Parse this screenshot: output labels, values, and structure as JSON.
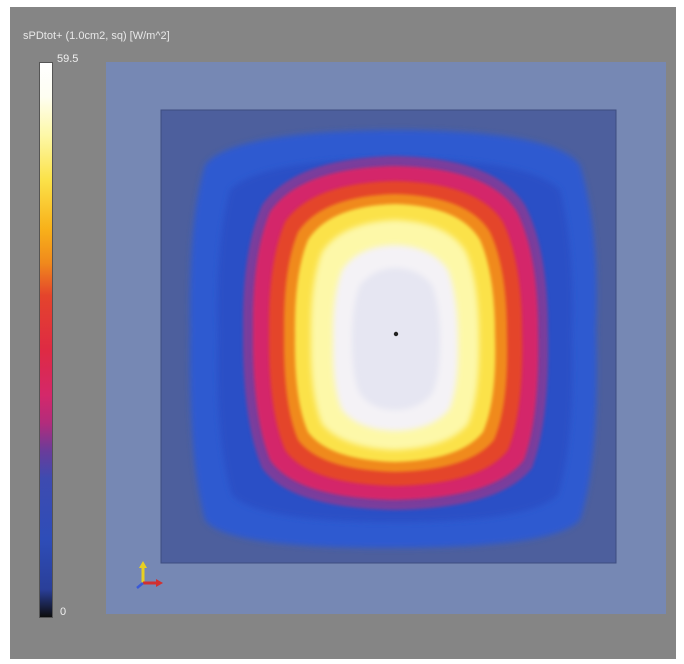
{
  "colorbar": {
    "title": "sPDtot+ (1.0cm2, sq) [W/m^2]",
    "max_label": "59.5",
    "min_label": "0"
  },
  "colors": {
    "frame": "#858585",
    "outer_region": "#7688b4",
    "scan_area": "#4d5f9d",
    "low_field": "#2f5ad0",
    "mid_field": "#d4286a",
    "high_field": "#fbe24a",
    "peak_field": "#fdfdfd"
  },
  "icons": [
    "axis-triad-icon",
    "peak-marker-icon"
  ]
}
